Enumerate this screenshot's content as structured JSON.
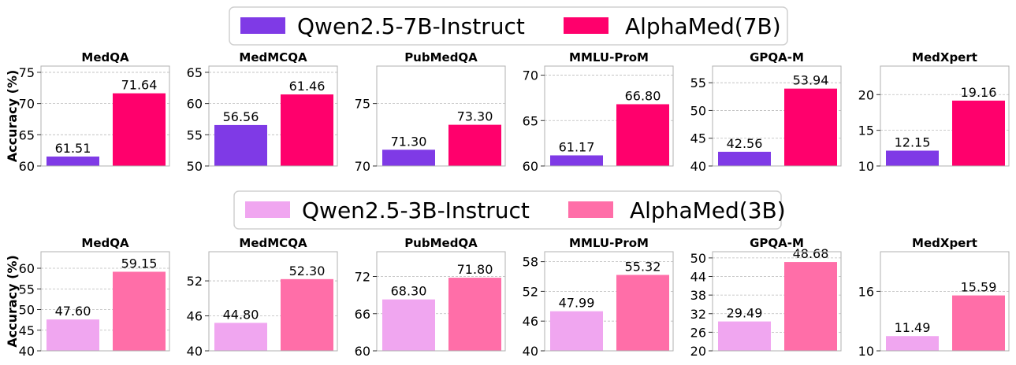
{
  "y_axis_label": "Accuracy (%)",
  "benchmarks": [
    "MedQA",
    "MedMCQA",
    "PubMedQA",
    "MMLU-ProM",
    "GPQA-M",
    "MedXpert"
  ],
  "chart_data": [
    {
      "type": "bar",
      "legend": "top-center",
      "series": [
        {
          "name": "Qwen2.5-7B-Instruct",
          "color": "#7f3ae6"
        },
        {
          "name": "AlphaMed(7B)",
          "color": "#ff006c"
        }
      ],
      "ylabel": "Accuracy (%)",
      "grid": true,
      "panels": [
        {
          "title": "MedQA",
          "values": [
            61.51,
            71.64
          ],
          "labels": [
            "61.51",
            "71.64"
          ],
          "ylim": [
            60,
            76
          ],
          "yticks": [
            60,
            65,
            70,
            75
          ]
        },
        {
          "title": "MedMCQA",
          "values": [
            56.56,
            61.46
          ],
          "labels": [
            "56.56",
            "61.46"
          ],
          "ylim": [
            50,
            66
          ],
          "yticks": [
            50,
            55,
            60,
            65
          ]
        },
        {
          "title": "PubMedQA",
          "values": [
            71.3,
            73.3
          ],
          "labels": [
            "71.30",
            "73.30"
          ],
          "ylim": [
            70,
            78
          ],
          "yticks": [
            70,
            75
          ]
        },
        {
          "title": "MMLU-ProM",
          "values": [
            61.17,
            66.8
          ],
          "labels": [
            "61.17",
            "66.80"
          ],
          "ylim": [
            60,
            71
          ],
          "yticks": [
            60,
            65,
            70
          ]
        },
        {
          "title": "GPQA-M",
          "values": [
            42.56,
            53.94
          ],
          "labels": [
            "42.56",
            "53.94"
          ],
          "ylim": [
            40,
            58
          ],
          "yticks": [
            40,
            45,
            50,
            55
          ]
        },
        {
          "title": "MedXpert",
          "values": [
            12.15,
            19.16
          ],
          "labels": [
            "12.15",
            "19.16"
          ],
          "ylim": [
            10,
            24
          ],
          "yticks": [
            10,
            15,
            20
          ]
        }
      ]
    },
    {
      "type": "bar",
      "legend": "top-center",
      "series": [
        {
          "name": "Qwen2.5-3B-Instruct",
          "color": "#f0a6f0"
        },
        {
          "name": "AlphaMed(3B)",
          "color": "#ff6ea8"
        }
      ],
      "ylabel": "Accuracy (%)",
      "grid": true,
      "panels": [
        {
          "title": "MedQA",
          "values": [
            47.6,
            59.15
          ],
          "labels": [
            "47.60",
            "59.15"
          ],
          "ylim": [
            40,
            64
          ],
          "yticks": [
            40,
            45,
            50,
            55,
            60
          ]
        },
        {
          "title": "MedMCQA",
          "values": [
            44.8,
            52.3
          ],
          "labels": [
            "44.80",
            "52.30"
          ],
          "ylim": [
            40,
            57
          ],
          "yticks": [
            40,
            46,
            52
          ]
        },
        {
          "title": "PubMedQA",
          "values": [
            68.3,
            71.8
          ],
          "labels": [
            "68.30",
            "71.80"
          ],
          "ylim": [
            60,
            76
          ],
          "yticks": [
            60,
            66,
            72
          ]
        },
        {
          "title": "MMLU-ProM",
          "values": [
            47.99,
            55.32
          ],
          "labels": [
            "47.99",
            "55.32"
          ],
          "ylim": [
            40,
            60
          ],
          "yticks": [
            40,
            46,
            52,
            58
          ]
        },
        {
          "title": "GPQA-M",
          "values": [
            29.49,
            48.68
          ],
          "labels": [
            "29.49",
            "48.68"
          ],
          "ylim": [
            20,
            52
          ],
          "yticks": [
            20,
            26,
            32,
            38,
            44,
            50
          ]
        },
        {
          "title": "MedXpert",
          "values": [
            11.49,
            15.59
          ],
          "labels": [
            "11.49",
            "15.59"
          ],
          "ylim": [
            10,
            20
          ],
          "yticks": [
            10,
            16
          ]
        }
      ]
    }
  ]
}
